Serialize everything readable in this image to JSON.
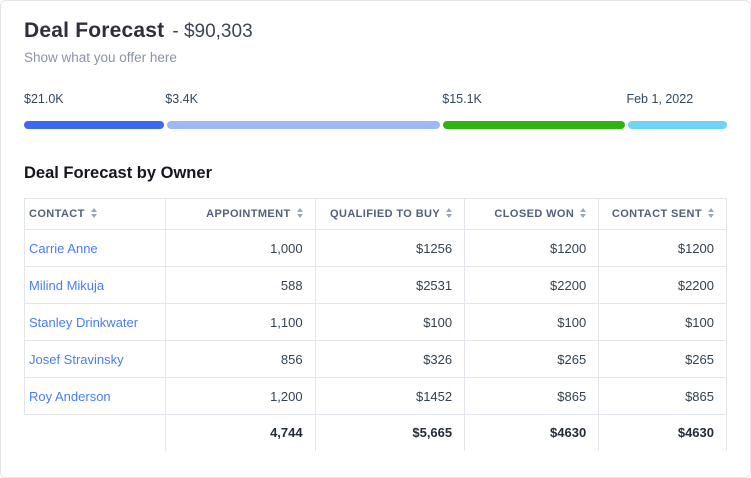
{
  "header": {
    "title": "Deal Forecast",
    "amount": "- $90,303",
    "subtitle": "Show what you offer here"
  },
  "progress": {
    "segments": [
      {
        "label": "$21.0K",
        "color": "#3f68f0",
        "width_pct": 20.1
      },
      {
        "label": "$3.4K",
        "color": "#9db9f4",
        "width_pct": 39.4
      },
      {
        "label": "$15.1K",
        "color": "#2eb512",
        "width_pct": 26.2
      },
      {
        "label": "Feb 1, 2022",
        "color": "#6fd4f7",
        "width_pct": 14.3
      }
    ]
  },
  "table": {
    "title": "Deal Forecast by Owner",
    "columns": [
      {
        "label": "CONTACT"
      },
      {
        "label": "APPOINTMENT"
      },
      {
        "label": "QUALIFIED TO BUY"
      },
      {
        "label": "CLOSED WON"
      },
      {
        "label": "CONTACT SENT"
      }
    ],
    "rows": [
      [
        "Carrie Anne",
        "1,000",
        "$1256",
        "$1200",
        "$1200"
      ],
      [
        "Milind Mikuja",
        "588",
        "$2531",
        "$2200",
        "$2200"
      ],
      [
        "Stanley Drinkwater",
        "1,100",
        "$100",
        "$100",
        "$100"
      ],
      [
        "Josef Stravinsky",
        "856",
        "$326",
        "$265",
        "$265"
      ],
      [
        "Roy Anderson",
        "1,200",
        "$1452",
        "$865",
        "$865"
      ]
    ],
    "totals": [
      "",
      "4,744",
      "$5,665",
      "$4630",
      "$4630"
    ]
  },
  "colors": {
    "link_blue": "#4a7df5",
    "title_dark": "#2d2f3b",
    "border_gray": "#e2e6ec"
  }
}
